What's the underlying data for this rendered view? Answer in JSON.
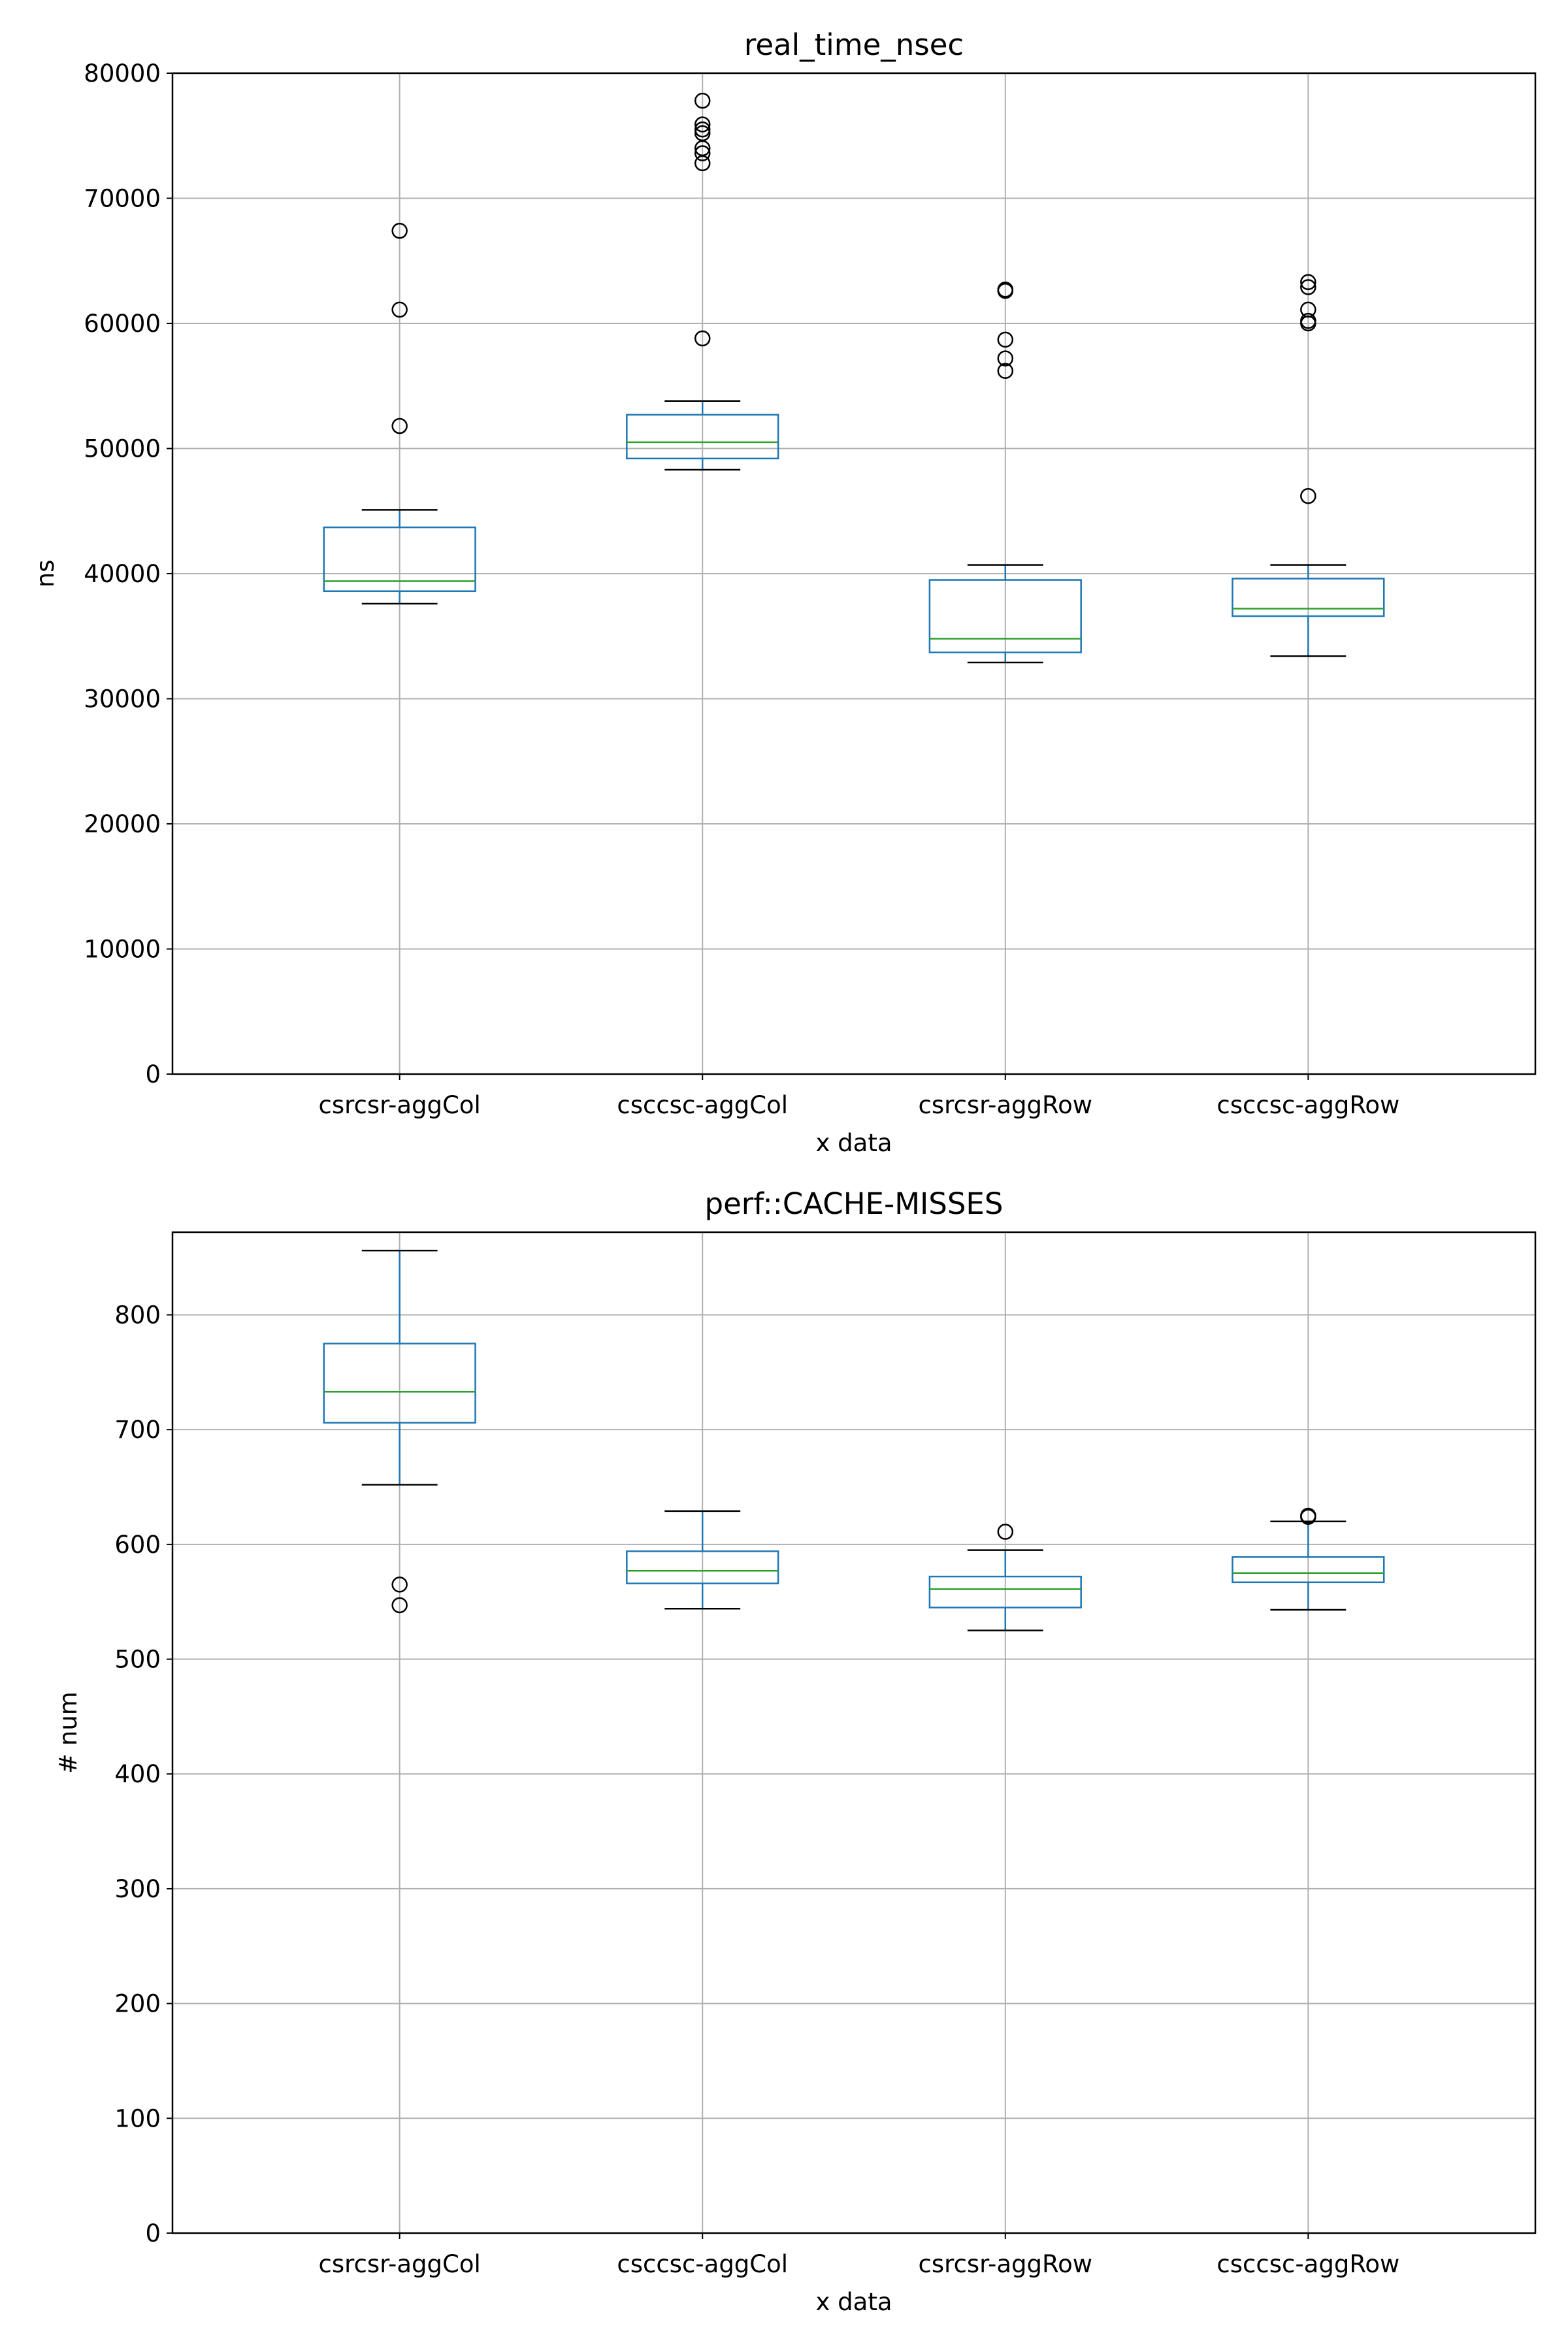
{
  "chart_data": [
    {
      "type": "box",
      "title": "real_time_nsec",
      "xlabel": "x data",
      "ylabel": "ns",
      "ylim": [
        0,
        80000
      ],
      "yticks": [
        0,
        10000,
        20000,
        30000,
        40000,
        50000,
        60000,
        70000,
        80000
      ],
      "ytick_labels": [
        "0",
        "10000",
        "20000",
        "30000",
        "40000",
        "50000",
        "60000",
        "70000",
        "80000"
      ],
      "grid": true,
      "categories": [
        "csrcsr-aggCol",
        "csccsc-aggCol",
        "csrcsr-aggRow",
        "csccsc-aggRow"
      ],
      "boxes": [
        {
          "whisker_low": 37600,
          "q1": 38600,
          "median": 39400,
          "q3": 43700,
          "whisker_high": 45100,
          "outliers": [
            51800,
            61100,
            67400
          ]
        },
        {
          "whisker_low": 48300,
          "q1": 49200,
          "median": 50500,
          "q3": 52700,
          "whisker_high": 53800,
          "outliers": [
            58800,
            72800,
            73600,
            74000,
            75200,
            75500,
            75900,
            77800
          ]
        },
        {
          "whisker_low": 32900,
          "q1": 33700,
          "median": 34800,
          "q3": 39500,
          "whisker_high": 40700,
          "outliers": [
            56200,
            57200,
            58700,
            62600,
            62700
          ]
        },
        {
          "whisker_low": 33400,
          "q1": 36600,
          "median": 37200,
          "q3": 39600,
          "whisker_high": 40700,
          "outliers": [
            46200,
            60000,
            60200,
            61100,
            62900,
            63300
          ]
        }
      ]
    },
    {
      "type": "box",
      "title": "perf::CACHE-MISSES",
      "xlabel": "x data",
      "ylabel": "# num",
      "ylim": [
        0,
        872
      ],
      "yticks": [
        0,
        100,
        200,
        300,
        400,
        500,
        600,
        700,
        800
      ],
      "ytick_labels": [
        "0",
        "100",
        "200",
        "300",
        "400",
        "500",
        "600",
        "700",
        "800"
      ],
      "grid": true,
      "categories": [
        "csrcsr-aggCol",
        "csccsc-aggCol",
        "csrcsr-aggRow",
        "csccsc-aggRow"
      ],
      "boxes": [
        {
          "whisker_low": 652,
          "q1": 706,
          "median": 733,
          "q3": 775,
          "whisker_high": 856,
          "outliers": [
            547,
            565
          ]
        },
        {
          "whisker_low": 544,
          "q1": 566,
          "median": 577,
          "q3": 594,
          "whisker_high": 629,
          "outliers": []
        },
        {
          "whisker_low": 525,
          "q1": 545,
          "median": 561,
          "q3": 572,
          "whisker_high": 595,
          "outliers": [
            611
          ]
        },
        {
          "whisker_low": 543,
          "q1": 567,
          "median": 575,
          "q3": 589,
          "whisker_high": 620,
          "outliers": [
            624,
            625
          ]
        }
      ]
    }
  ],
  "colors": {
    "box": "#1f77b4",
    "median": "#2ca02c",
    "whisker_cap": "#000000",
    "outlier": "#000000",
    "grid": "#b0b0b0",
    "frame": "#000000"
  }
}
